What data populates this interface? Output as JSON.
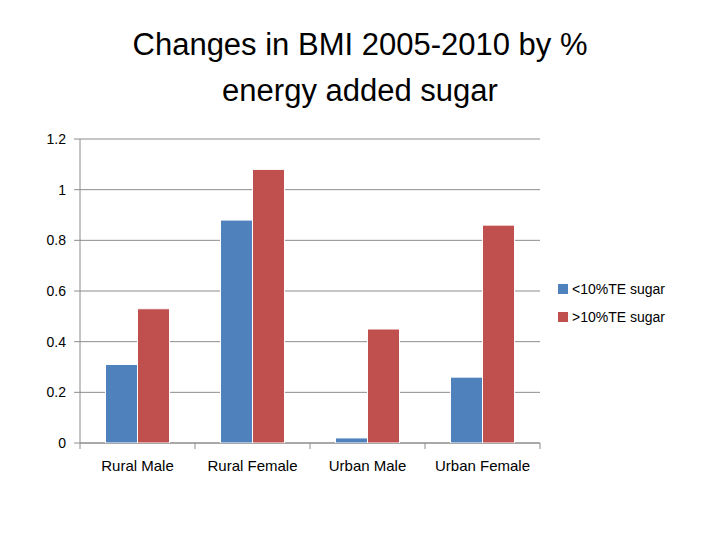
{
  "chart_data": {
    "type": "bar",
    "title": "Changes in BMI 2005-2010 by % energy added sugar",
    "categories": [
      "Rural Male",
      "Rural Female",
      "Urban Male",
      "Urban Female"
    ],
    "series": [
      {
        "name": "<10%TE sugar",
        "color": "#4f81bd",
        "values": [
          0.31,
          0.88,
          0.02,
          0.26
        ]
      },
      {
        "name": ">10%TE sugar",
        "color": "#c0504d",
        "values": [
          0.53,
          1.08,
          0.45,
          0.86
        ]
      }
    ],
    "ylim": [
      0,
      1.2
    ],
    "yticks": [
      0,
      0.2,
      0.4,
      0.6,
      0.8,
      1,
      1.2
    ],
    "grid": true,
    "legend": "right"
  }
}
